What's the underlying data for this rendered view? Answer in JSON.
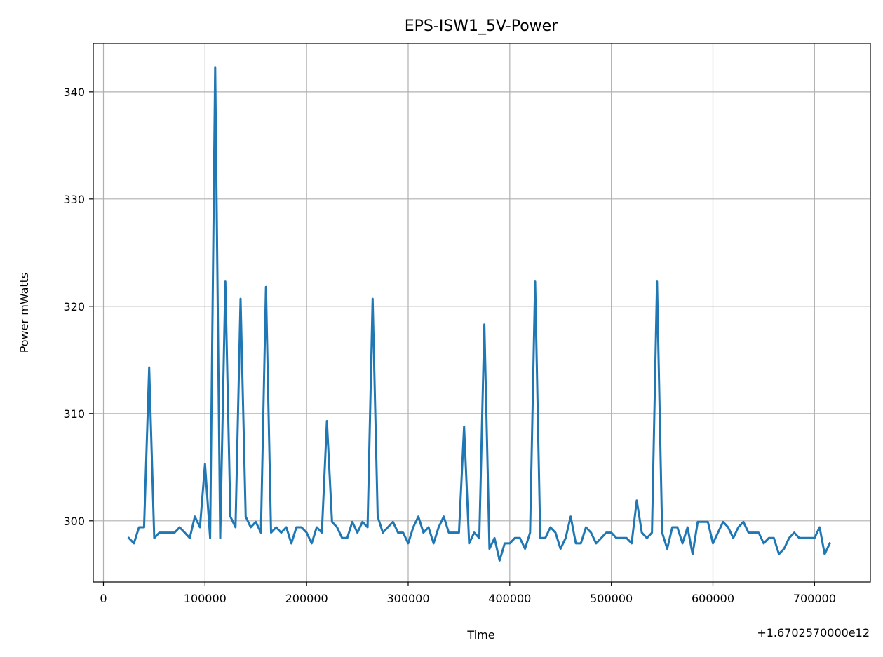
{
  "chart_data": {
    "type": "line",
    "title": "EPS-ISW1_5V-Power",
    "xlabel": "Time",
    "ylabel": "Power mWatts",
    "offset_text": "+1.6702570000e12",
    "xlim": [
      -10000,
      755000
    ],
    "ylim": [
      294.3,
      344.5
    ],
    "x_ticks": [
      0,
      100000,
      200000,
      300000,
      400000,
      500000,
      600000,
      700000
    ],
    "x_tick_labels": [
      "0",
      "100000",
      "200000",
      "300000",
      "400000",
      "500000",
      "600000",
      "700000"
    ],
    "y_ticks": [
      300,
      310,
      320,
      330,
      340
    ],
    "y_tick_labels": [
      "300",
      "310",
      "320",
      "330",
      "340"
    ],
    "grid": true,
    "series": [
      {
        "name": "",
        "color": "#1f77b4",
        "x": [
          25000,
          30000,
          35000,
          40000,
          45000,
          50000,
          55000,
          60000,
          65000,
          70000,
          75000,
          80000,
          85000,
          90000,
          95000,
          100000,
          105000,
          110000,
          115000,
          120000,
          125000,
          130000,
          135000,
          140000,
          145000,
          150000,
          155000,
          160000,
          165000,
          170000,
          175000,
          180000,
          185000,
          190000,
          195000,
          200000,
          205000,
          210000,
          215000,
          220000,
          225000,
          230000,
          235000,
          240000,
          245000,
          250000,
          255000,
          260000,
          265000,
          270000,
          275000,
          280000,
          285000,
          290000,
          295000,
          300000,
          305000,
          310000,
          315000,
          320000,
          325000,
          330000,
          335000,
          340000,
          345000,
          350000,
          355000,
          360000,
          365000,
          370000,
          375000,
          380000,
          385000,
          390000,
          395000,
          400000,
          405000,
          410000,
          415000,
          420000,
          425000,
          430000,
          435000,
          440000,
          445000,
          450000,
          455000,
          460000,
          465000,
          470000,
          475000,
          480000,
          485000,
          490000,
          495000,
          500000,
          505000,
          510000,
          515000,
          520000,
          525000,
          530000,
          535000,
          540000,
          545000,
          550000,
          555000,
          560000,
          565000,
          570000,
          575000,
          580000,
          585000,
          590000,
          595000,
          600000,
          605000,
          610000,
          615000,
          620000,
          625000,
          630000,
          635000,
          640000,
          645000,
          650000,
          655000,
          660000,
          665000,
          670000,
          675000,
          680000,
          685000,
          690000,
          695000,
          700000,
          705000,
          710000,
          715000
        ],
        "y": [
          298.4,
          297.9,
          299.4,
          299.4,
          314.3,
          298.4,
          298.9,
          298.9,
          298.9,
          298.9,
          299.4,
          298.9,
          298.4,
          300.4,
          299.4,
          305.3,
          298.4,
          342.3,
          298.4,
          322.3,
          300.4,
          299.4,
          320.7,
          300.4,
          299.4,
          299.9,
          298.9,
          321.8,
          298.9,
          299.4,
          298.9,
          299.4,
          297.9,
          299.4,
          299.4,
          298.9,
          297.9,
          299.4,
          298.9,
          309.3,
          299.9,
          299.4,
          298.4,
          298.4,
          299.9,
          298.9,
          299.9,
          299.4,
          320.7,
          300.4,
          298.9,
          299.4,
          299.9,
          298.9,
          298.9,
          297.9,
          299.4,
          300.4,
          298.9,
          299.4,
          297.9,
          299.4,
          300.4,
          298.9,
          298.9,
          298.9,
          308.8,
          297.9,
          298.9,
          298.4,
          318.3,
          297.4,
          298.4,
          296.3,
          297.9,
          297.9,
          298.4,
          298.4,
          297.4,
          298.9,
          322.3,
          298.4,
          298.4,
          299.4,
          298.9,
          297.4,
          298.4,
          300.4,
          297.9,
          297.9,
          299.4,
          298.9,
          297.9,
          298.4,
          298.9,
          298.9,
          298.4,
          298.4,
          298.4,
          297.9,
          301.9,
          298.9,
          298.4,
          298.9,
          322.3,
          298.9,
          297.4,
          299.4,
          299.4,
          297.9,
          299.4,
          296.9,
          299.9,
          299.9,
          299.9,
          297.9,
          298.9,
          299.9,
          299.4,
          298.4,
          299.4,
          299.9,
          298.9,
          298.9,
          298.9,
          297.9,
          298.4,
          298.4,
          296.9,
          297.4,
          298.4,
          298.9,
          298.4,
          298.4,
          298.4,
          298.4,
          299.4,
          296.9,
          297.9
        ]
      }
    ]
  }
}
